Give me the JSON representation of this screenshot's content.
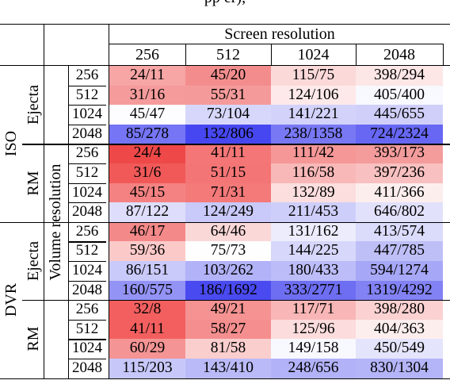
{
  "caption_fragment": "pp er),",
  "table": {
    "screen_header": "Screen resolution",
    "volume_header": "Volume resolution",
    "screen_resolutions": [
      "256",
      "512",
      "1024",
      "2048"
    ],
    "volume_resolutions": [
      "256",
      "512",
      "1024",
      "2048"
    ],
    "methods": [
      "ISO",
      "DVR"
    ],
    "datasets": [
      "Ejecta",
      "RM"
    ],
    "rows": [
      {
        "cells": [
          "24/11",
          "45/20",
          "115/75",
          "398/294"
        ],
        "colors": [
          "#f7a5a5",
          "#f38d8d",
          "#fbd9d9",
          "#fce6e6"
        ]
      },
      {
        "cells": [
          "31/16",
          "55/31",
          "124/106",
          "405/400"
        ],
        "colors": [
          "#f59b9b",
          "#f59a9a",
          "#fde9e9",
          "#f8f8ff"
        ]
      },
      {
        "cells": [
          "45/47",
          "73/104",
          "141/221",
          "445/655"
        ],
        "colors": [
          "#fdfdff",
          "#d7d7fb",
          "#d2d2fb",
          "#cfcffa"
        ]
      },
      {
        "cells": [
          "85/278",
          "132/806",
          "238/1358",
          "724/2324"
        ],
        "colors": [
          "#7575f5",
          "#4747f1",
          "#7878f4",
          "#6767f4"
        ]
      },
      {
        "cells": [
          "24/4",
          "41/11",
          "111/42",
          "393/173"
        ],
        "colors": [
          "#ef4848",
          "#f47676",
          "#f69797",
          "#f49c9c"
        ]
      },
      {
        "cells": [
          "31/6",
          "51/15",
          "116/58",
          "397/236"
        ],
        "colors": [
          "#f15959",
          "#f47575",
          "#f9b8b8",
          "#f8c0c0"
        ]
      },
      {
        "cells": [
          "45/15",
          "71/31",
          "132/89",
          "411/366"
        ],
        "colors": [
          "#f48282",
          "#f47979",
          "#fcdede",
          "#fdeeee"
        ]
      },
      {
        "cells": [
          "87/122",
          "124/249",
          "211/453",
          "646/802"
        ],
        "colors": [
          "#dedefc",
          "#c9c9fa",
          "#cecefa",
          "#e1e1fc"
        ]
      },
      {
        "cells": [
          "46/17",
          "64/46",
          "131/162",
          "413/574"
        ],
        "colors": [
          "#f48989",
          "#fbd8d8",
          "#ececfd",
          "#dbdbfb"
        ]
      },
      {
        "cells": [
          "59/36",
          "75/73",
          "144/225",
          "447/785"
        ],
        "colors": [
          "#fcc9c9",
          "#fefefe",
          "#d7d7fb",
          "#bfbff8"
        ]
      },
      {
        "cells": [
          "86/151",
          "103/262",
          "180/433",
          "594/1274"
        ],
        "colors": [
          "#c9c9fa",
          "#b2b2f8",
          "#bcbcf8",
          "#a7a7f7"
        ]
      },
      {
        "cells": [
          "160/575",
          "186/1692",
          "333/2771",
          "1319/4292"
        ],
        "colors": [
          "#9393f6",
          "#4a4af1",
          "#6e6ef3",
          "#8282f4"
        ]
      },
      {
        "cells": [
          "32/8",
          "49/21",
          "117/71",
          "398/280"
        ],
        "colors": [
          "#f35f5f",
          "#f59292",
          "#f9b6b6",
          "#fbd1d1"
        ]
      },
      {
        "cells": [
          "41/11",
          "58/27",
          "125/96",
          "404/363"
        ],
        "colors": [
          "#f35f5f",
          "#f58e8e",
          "#fcdcdc",
          "#fdeeee"
        ]
      },
      {
        "cells": [
          "60/29",
          "81/58",
          "149/158",
          "450/549"
        ],
        "colors": [
          "#f59494",
          "#fbcece",
          "#f8f8ff",
          "#e4e4fc"
        ]
      },
      {
        "cells": [
          "115/203",
          "143/410",
          "248/656",
          "830/1304"
        ],
        "colors": [
          "#c7c7fa",
          "#babaf8",
          "#b2b2f8",
          "#b4b4f8"
        ]
      }
    ]
  }
}
